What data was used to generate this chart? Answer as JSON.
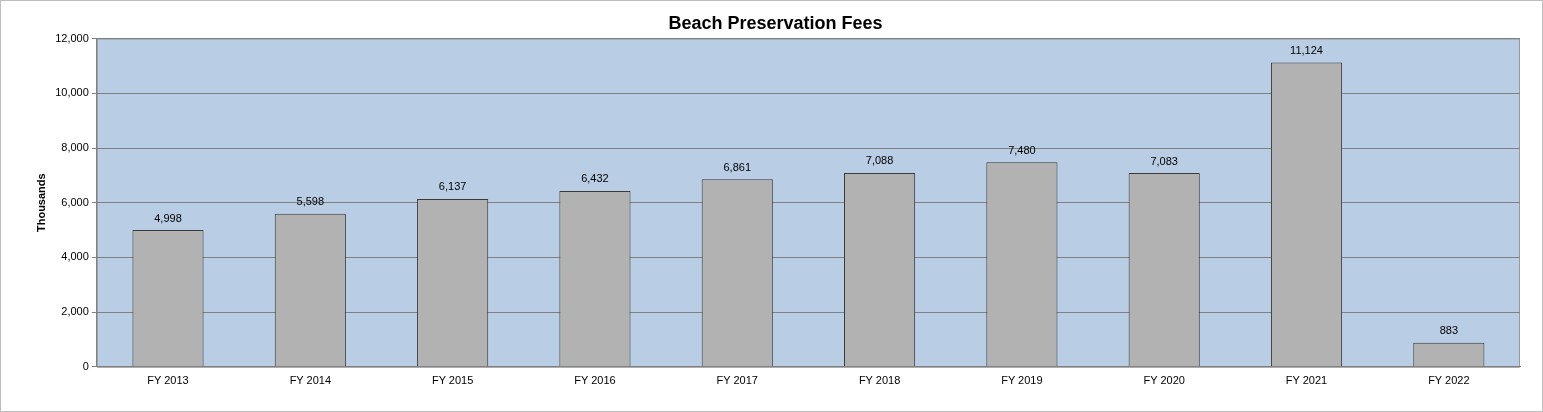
{
  "chart_data": {
    "type": "bar",
    "title": "Beach Preservation Fees",
    "ylabel": "Thousands",
    "categories": [
      "FY 2013",
      "FY 2014",
      "FY 2015",
      "FY 2016",
      "FY 2017",
      "FY 2018",
      "FY 2019",
      "FY 2020",
      "FY 2021",
      "FY 2022"
    ],
    "values": [
      4998,
      5598,
      6137,
      6432,
      6861,
      7088,
      7480,
      7083,
      11124,
      883
    ],
    "value_labels": [
      "4,998",
      "5,598",
      "6,137",
      "6,432",
      "6,861",
      "7,088",
      "7,480",
      "7,083",
      "11,124",
      "883"
    ],
    "color": "#b2b2b2",
    "ylim": [
      0,
      12000
    ],
    "yticks": [
      {
        "value": 0,
        "label": "0"
      },
      {
        "value": 2000,
        "label": "2,000"
      },
      {
        "value": 4000,
        "label": "4,000"
      },
      {
        "value": 6000,
        "label": "6,000"
      },
      {
        "value": 8000,
        "label": "8,000"
      },
      {
        "value": 10000,
        "label": "10,000"
      },
      {
        "value": 12000,
        "label": "12,000"
      }
    ],
    "grid": "y"
  }
}
